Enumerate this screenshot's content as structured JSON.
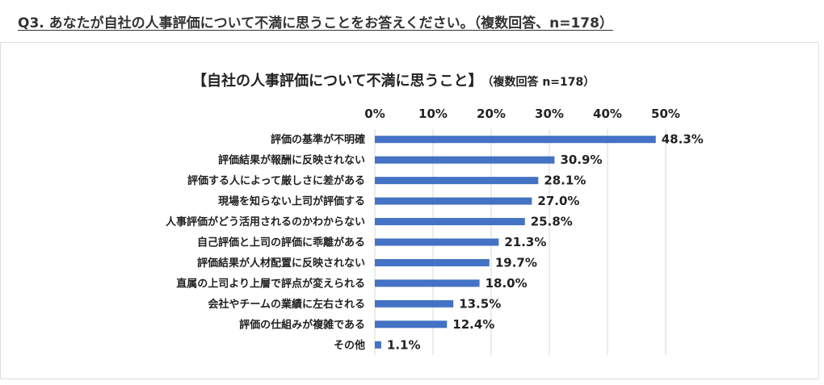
{
  "question": "Q3. あなたが自社の人事評価について不満に思うことをお答えください。（複数回答、n=178）",
  "chart_data": {
    "type": "bar",
    "orientation": "horizontal",
    "title": "【自社の人事評価について不満に思うこと】",
    "subtitle": "（複数回答 n=178）",
    "xlim": [
      0,
      50
    ],
    "tick_labels": [
      "0%",
      "10%",
      "20%",
      "30%",
      "40%",
      "50%"
    ],
    "tick_values": [
      0,
      10,
      20,
      30,
      40,
      50
    ],
    "axis_position": "top",
    "grid": true,
    "bar_color": "#4472C4",
    "categories": [
      "評価の基準が不明確",
      "評価結果が報酬に反映されない",
      "評価する人によって厳しさに差がある",
      "現場を知らない上司が評価する",
      "人事評価がどう活用されるのかわからない",
      "自己評価と上司の評価に乖離がある",
      "評価結果が人材配置に反映されない",
      "直属の上司より上層で評点が変えられる",
      "会社やチームの業績に左右される",
      "評価の仕組みが複雑である",
      "その他"
    ],
    "values": [
      48.3,
      30.9,
      28.1,
      27.0,
      25.8,
      21.3,
      19.7,
      18.0,
      13.5,
      12.4,
      1.1
    ],
    "value_labels": [
      "48.3%",
      "30.9%",
      "28.1%",
      "27.0%",
      "25.8%",
      "21.3%",
      "19.7%",
      "18.0%",
      "13.5%",
      "12.4%",
      "1.1%"
    ]
  }
}
